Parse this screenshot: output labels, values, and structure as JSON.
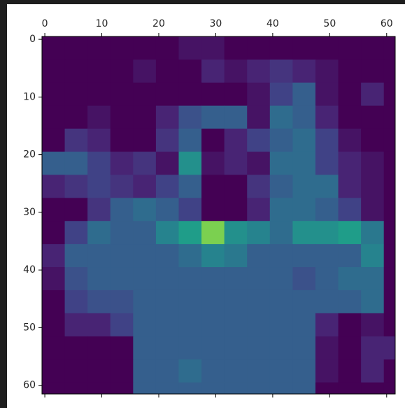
{
  "chart_data": {
    "type": "heatmap",
    "colormap": "viridis",
    "zlim": [
      0,
      1
    ],
    "xaxis_position": "top",
    "xlim": [
      -0.5,
      61.5
    ],
    "ylim": [
      -0.5,
      61.5
    ],
    "xticks": [
      0,
      10,
      20,
      30,
      40,
      50,
      60
    ],
    "yticks": [
      0,
      10,
      20,
      30,
      40,
      50,
      60
    ],
    "xbins": [
      -0.5,
      3.5,
      7.5,
      11.5,
      15.5,
      19.5,
      23.5,
      27.5,
      31.5,
      35.5,
      39.5,
      43.5,
      47.5,
      51.5,
      55.5,
      59.5,
      61.5
    ],
    "ybins": [
      -0.5,
      3.5,
      7.5,
      11.5,
      15.5,
      19.5,
      23.5,
      27.5,
      31.5,
      35.5,
      39.5,
      43.5,
      47.5,
      51.5,
      55.5,
      59.5,
      61.5
    ],
    "z": [
      [
        0,
        0,
        0,
        0,
        0,
        0,
        0.05,
        0.05,
        0,
        0,
        0,
        0,
        0,
        0,
        0,
        0
      ],
      [
        0,
        0,
        0,
        0,
        0.05,
        0,
        0,
        0.1,
        0.05,
        0.1,
        0.15,
        0.1,
        0.05,
        0,
        0,
        0
      ],
      [
        0,
        0,
        0,
        0,
        0,
        0,
        0,
        0,
        0,
        0.05,
        0.2,
        0.3,
        0.05,
        0,
        0.1,
        0
      ],
      [
        0,
        0,
        0.05,
        0,
        0,
        0.1,
        0.25,
        0.3,
        0.3,
        0.05,
        0.35,
        0.3,
        0.1,
        0,
        0,
        0
      ],
      [
        0,
        0.15,
        0.1,
        0,
        0,
        0.15,
        0.3,
        0,
        0.1,
        0.2,
        0.3,
        0.35,
        0.2,
        0.05,
        0,
        0
      ],
      [
        0.3,
        0.3,
        0.2,
        0.1,
        0.15,
        0.05,
        0.5,
        0.05,
        0.1,
        0.05,
        0.35,
        0.35,
        0.2,
        0.1,
        0.05,
        0
      ],
      [
        0.1,
        0.15,
        0.2,
        0.15,
        0.1,
        0.2,
        0.3,
        0,
        0,
        0.15,
        0.3,
        0.35,
        0.35,
        0.1,
        0.05,
        0
      ],
      [
        0,
        0,
        0.15,
        0.3,
        0.35,
        0.3,
        0.2,
        0,
        0,
        0.1,
        0.35,
        0.35,
        0.3,
        0.2,
        0.05,
        0
      ],
      [
        0,
        0.2,
        0.35,
        0.3,
        0.3,
        0.45,
        0.55,
        0.8,
        0.5,
        0.45,
        0.35,
        0.5,
        0.5,
        0.55,
        0.4,
        0
      ],
      [
        0.1,
        0.3,
        0.3,
        0.3,
        0.3,
        0.3,
        0.35,
        0.45,
        0.4,
        0.3,
        0.3,
        0.3,
        0.3,
        0.3,
        0.45,
        0
      ],
      [
        0.05,
        0.25,
        0.3,
        0.3,
        0.3,
        0.3,
        0.3,
        0.3,
        0.3,
        0.3,
        0.3,
        0.25,
        0.3,
        0.35,
        0.35,
        0
      ],
      [
        0,
        0.2,
        0.25,
        0.25,
        0.3,
        0.3,
        0.3,
        0.3,
        0.3,
        0.3,
        0.3,
        0.3,
        0.3,
        0.3,
        0.35,
        0
      ],
      [
        0,
        0.1,
        0.1,
        0.2,
        0.3,
        0.3,
        0.3,
        0.3,
        0.3,
        0.3,
        0.3,
        0.3,
        0.1,
        0,
        0.05,
        0
      ],
      [
        0,
        0,
        0,
        0,
        0.3,
        0.3,
        0.3,
        0.3,
        0.3,
        0.3,
        0.3,
        0.3,
        0.05,
        0,
        0.1,
        0.1
      ],
      [
        0,
        0,
        0,
        0,
        0.3,
        0.3,
        0.35,
        0.3,
        0.3,
        0.3,
        0.3,
        0.3,
        0.05,
        0,
        0.1,
        0
      ],
      [
        0,
        0,
        0,
        0,
        0.3,
        0.3,
        0.3,
        0.3,
        0.3,
        0.3,
        0.3,
        0.3,
        0,
        0,
        0,
        0
      ]
    ]
  }
}
